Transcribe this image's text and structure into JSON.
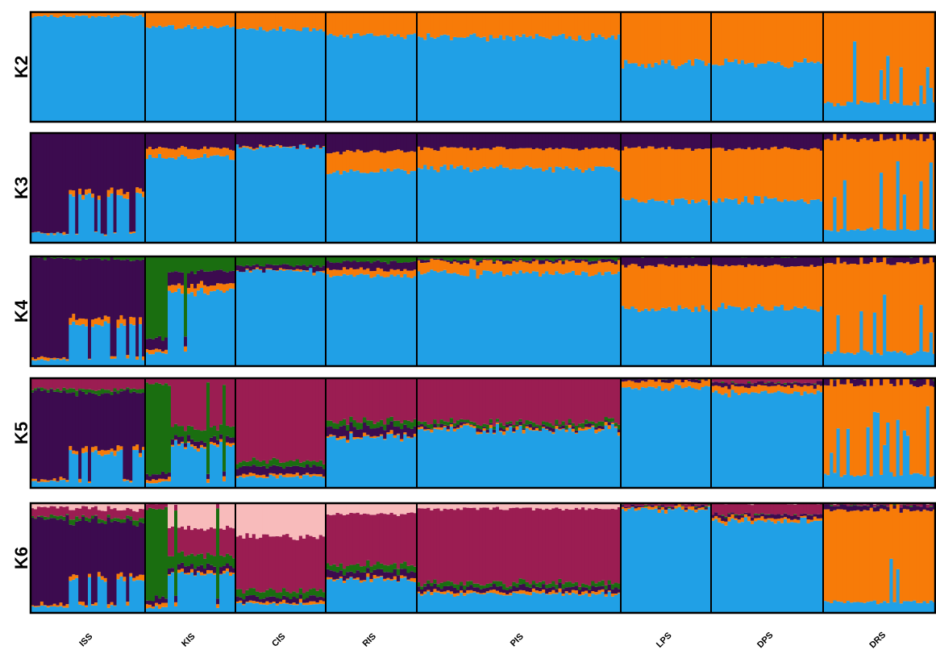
{
  "chart_data": {
    "type": "bar",
    "stacked": true,
    "normalized": true,
    "ylim": [
      0,
      1
    ],
    "legend": "none",
    "grid": false,
    "populations": [
      {
        "name": "ISS",
        "n": 36
      },
      {
        "name": "KIS",
        "n": 28
      },
      {
        "name": "CIS",
        "n": 27
      },
      {
        "name": "RIS",
        "n": 27
      },
      {
        "name": "PIS",
        "n": 62
      },
      {
        "name": "LPS",
        "n": 27
      },
      {
        "name": "DPS",
        "n": 34
      },
      {
        "name": "DRS",
        "n": 34
      }
    ],
    "cluster_colors": [
      "#20a0e6",
      "#f77b08",
      "#3c0b4f",
      "#1a6e10",
      "#9b1d52",
      "#f8bbbb"
    ],
    "panels": [
      {
        "label": "K2",
        "k": 2,
        "profiles": {
          "ISS": [
            [
              0.96,
              0.04
            ]
          ],
          "KIS": [
            [
              0.86,
              0.14
            ]
          ],
          "CIS": [
            [
              0.85,
              0.15
            ]
          ],
          "RIS": [
            [
              0.79,
              0.21
            ]
          ],
          "PIS": [
            [
              0.77,
              0.23
            ]
          ],
          "LPS": [
            [
              0.53,
              0.47
            ]
          ],
          "DPS": [
            [
              0.54,
              0.46
            ]
          ],
          "DRS": [
            [
              0.17,
              0.83
            ]
          ]
        }
      },
      {
        "label": "K3",
        "k": 3,
        "profiles": {
          "ISS": [
            [
              0.08,
              0.01,
              0.91
            ],
            [
              0.42,
              0.05,
              0.53
            ]
          ],
          "KIS": [
            [
              0.78,
              0.08,
              0.14
            ]
          ],
          "CIS": [
            [
              0.87,
              0.01,
              0.12
            ]
          ],
          "RIS": [
            [
              0.65,
              0.18,
              0.17
            ]
          ],
          "PIS": [
            [
              0.68,
              0.18,
              0.14
            ]
          ],
          "LPS": [
            [
              0.38,
              0.48,
              0.14
            ]
          ],
          "DPS": [
            [
              0.39,
              0.47,
              0.14
            ]
          ],
          "DRS": [
            [
              0.12,
              0.82,
              0.06
            ]
          ]
        }
      },
      {
        "label": "K4",
        "k": 4,
        "profiles": {
          "ISS": [
            [
              0.06,
              0.02,
              0.9,
              0.02
            ],
            [
              0.38,
              0.06,
              0.53,
              0.03
            ]
          ],
          "KIS": [
            [
              0.12,
              0.03,
              0.1,
              0.75
            ],
            [
              0.68,
              0.06,
              0.12,
              0.14
            ]
          ],
          "CIS": [
            [
              0.87,
              0.01,
              0.04,
              0.08
            ]
          ],
          "RIS": [
            [
              0.82,
              0.06,
              0.07,
              0.05
            ]
          ],
          "PIS": [
            [
              0.85,
              0.1,
              0.02,
              0.03
            ]
          ],
          "LPS": [
            [
              0.53,
              0.39,
              0.08,
              0.0
            ]
          ],
          "DPS": [
            [
              0.54,
              0.38,
              0.08,
              0.0
            ]
          ],
          "DRS": [
            [
              0.12,
              0.82,
              0.06,
              0.0
            ]
          ]
        }
      },
      {
        "label": "K5",
        "k": 5,
        "profiles": {
          "ISS": [
            [
              0.06,
              0.02,
              0.8,
              0.02,
              0.1
            ],
            [
              0.32,
              0.04,
              0.5,
              0.04,
              0.1
            ]
          ],
          "KIS": [
            [
              0.05,
              0.03,
              0.05,
              0.82,
              0.05
            ],
            [
              0.38,
              0.02,
              0.05,
              0.1,
              0.45
            ]
          ],
          "CIS": [
            [
              0.1,
              0.02,
              0.07,
              0.05,
              0.76
            ]
          ],
          "RIS": [
            [
              0.46,
              0.02,
              0.08,
              0.05,
              0.39
            ]
          ],
          "PIS": [
            [
              0.53,
              0.02,
              0.02,
              0.03,
              0.4
            ]
          ],
          "LPS": [
            [
              0.92,
              0.06,
              0.02,
              0.0,
              0.0
            ]
          ],
          "DPS": [
            [
              0.87,
              0.06,
              0.03,
              0.0,
              0.04
            ]
          ],
          "DRS": [
            [
              0.12,
              0.82,
              0.06,
              0.0,
              0.0
            ]
          ]
        }
      },
      {
        "label": "K6",
        "k": 6,
        "profiles": {
          "ISS": [
            [
              0.06,
              0.02,
              0.78,
              0.02,
              0.08,
              0.04
            ],
            [
              0.32,
              0.04,
              0.46,
              0.04,
              0.08,
              0.06
            ]
          ],
          "KIS": [
            [
              0.05,
              0.03,
              0.05,
              0.82,
              0.05,
              0.0
            ],
            [
              0.35,
              0.02,
              0.05,
              0.1,
              0.25,
              0.23
            ]
          ],
          "CIS": [
            [
              0.08,
              0.02,
              0.04,
              0.06,
              0.5,
              0.3
            ]
          ],
          "RIS": [
            [
              0.3,
              0.02,
              0.06,
              0.06,
              0.46,
              0.1
            ]
          ],
          "PIS": [
            [
              0.17,
              0.02,
              0.04,
              0.04,
              0.68,
              0.05
            ]
          ],
          "LPS": [
            [
              0.95,
              0.02,
              0.01,
              0.0,
              0.02,
              0.0
            ]
          ],
          "DPS": [
            [
              0.84,
              0.03,
              0.03,
              0.0,
              0.1,
              0.0
            ]
          ],
          "DRS": [
            [
              0.1,
              0.84,
              0.04,
              0.0,
              0.02,
              0.0
            ]
          ]
        }
      }
    ]
  }
}
